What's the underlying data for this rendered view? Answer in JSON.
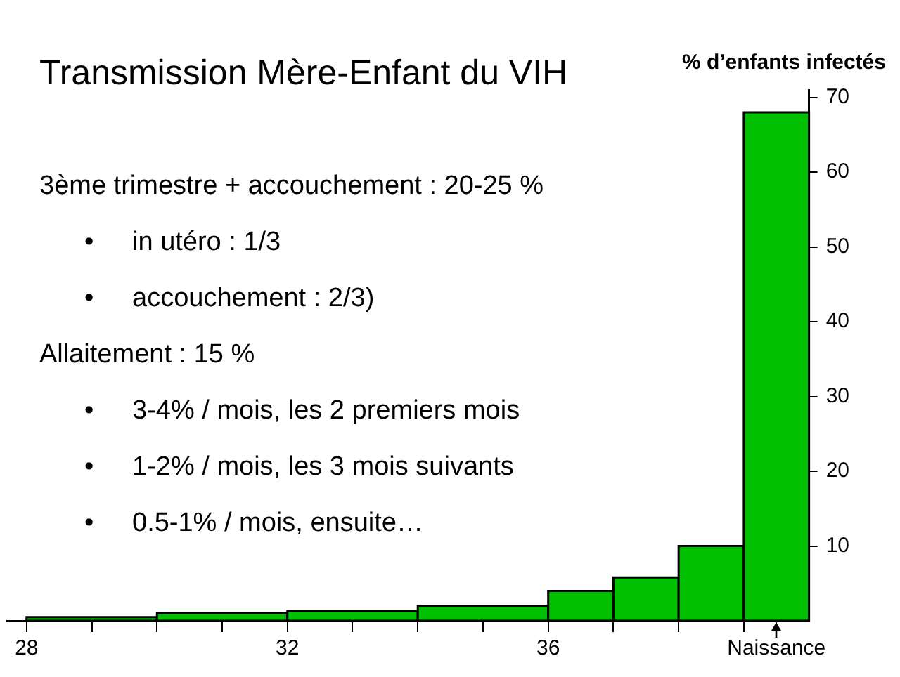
{
  "chart_data": {
    "type": "histogram",
    "title": "Transmission Mère-Enfant du VIH",
    "ylabel": "% d’enfants infectés",
    "bins": [
      28,
      30,
      32,
      34,
      36,
      37,
      38,
      39,
      40
    ],
    "values": [
      0.5,
      1,
      1.3,
      2,
      4,
      5.8,
      10,
      68
    ],
    "color": "#00c000",
    "xlim": [
      27.7,
      40
    ],
    "xticks": [
      28,
      {
        "value": 29,
        "label": null
      },
      {
        "value": 30,
        "label": null
      },
      {
        "value": 31,
        "label": null
      },
      32,
      {
        "value": 33,
        "label": null
      },
      {
        "value": 34,
        "label": null
      },
      {
        "value": 35,
        "label": null
      },
      36,
      {
        "value": 37,
        "label": null
      },
      {
        "value": 38,
        "label": null
      },
      {
        "value": 39,
        "label": null
      },
      {
        "value": 39.5,
        "label": "Naissance"
      }
    ],
    "ylim": [
      0,
      71
    ],
    "yticks": [
      10,
      20,
      30,
      40,
      50,
      60,
      70
    ],
    "grid": false,
    "legend": false,
    "annotations": [
      "3ème trimestre + accouchement : 20-25 %",
      "•\tin utéro : 1/3",
      "•\taccouchement : 2/3)",
      "Allaitement : 15 %",
      "•\t3-4% / mois, les 2 premiers mois",
      "•\t1-2% / mois, les 3 mois suivants",
      "•\t0.5-1% / mois, ensuite…"
    ]
  }
}
